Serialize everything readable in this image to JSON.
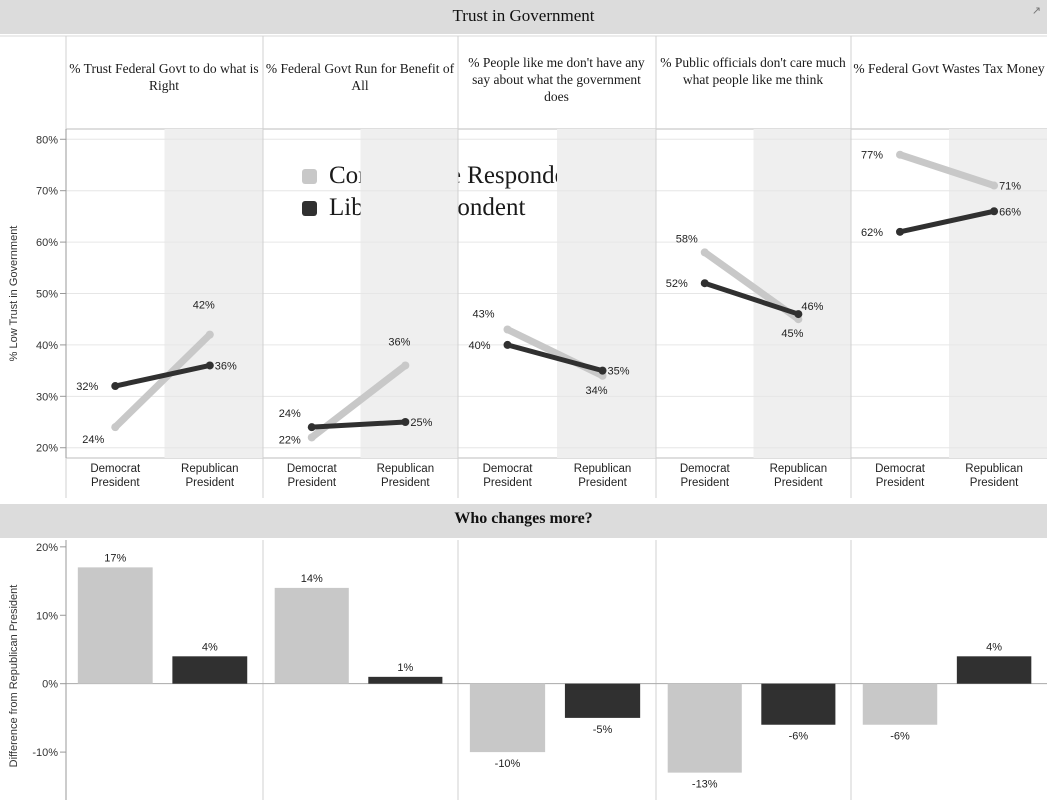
{
  "header": {
    "title": "Trust in Government",
    "popout_icon": "popout-icon"
  },
  "lower_title": "Who changes more?",
  "colors": {
    "conservative": "#c8c8c8",
    "liberal": "#303030",
    "band": "#dcdcdc",
    "shade": "#efefef",
    "grid": "#cfcfcf"
  },
  "legend": {
    "conservative": "Conservative Respondent",
    "liberal": "Liberal Respondent"
  },
  "chart_data": [
    {
      "type": "line",
      "title": "Trust in Government",
      "ylabel": "% Low Trust in Government",
      "ylim": [
        18,
        82
      ],
      "yticks": [
        "20%",
        "30%",
        "40%",
        "50%",
        "60%",
        "70%",
        "80%"
      ],
      "ytick_values": [
        20,
        30,
        40,
        50,
        60,
        70,
        80
      ],
      "categories": [
        "Democrat President",
        "Republican President"
      ],
      "panels": [
        {
          "title": "% Trust Federal Govt to do what is Right",
          "series": [
            {
              "name": "Conservative Respondent",
              "values": [
                24,
                42
              ],
              "labels": [
                "24%",
                "42%"
              ]
            },
            {
              "name": "Liberal Respondent",
              "values": [
                32,
                36
              ],
              "labels": [
                "32%",
                "36%"
              ]
            }
          ]
        },
        {
          "title": "% Federal Govt Run for Benefit of All",
          "series": [
            {
              "name": "Conservative Respondent",
              "values": [
                22,
                36
              ],
              "labels": [
                "22%",
                "36%"
              ]
            },
            {
              "name": "Liberal Respondent",
              "values": [
                24,
                25
              ],
              "labels": [
                "24%",
                "25%"
              ]
            }
          ]
        },
        {
          "title": "% People like me don't have any say about what the government does",
          "series": [
            {
              "name": "Conservative Respondent",
              "values": [
                43,
                34
              ],
              "labels": [
                "43%",
                "34%"
              ]
            },
            {
              "name": "Liberal Respondent",
              "values": [
                40,
                35
              ],
              "labels": [
                "40%",
                "35%"
              ]
            }
          ]
        },
        {
          "title": "% Public officials don't care much what people like me think",
          "series": [
            {
              "name": "Conservative Respondent",
              "values": [
                58,
                45
              ],
              "labels": [
                "58%",
                "45%"
              ]
            },
            {
              "name": "Liberal Respondent",
              "values": [
                52,
                46
              ],
              "labels": [
                "52%",
                "46%"
              ]
            }
          ]
        },
        {
          "title": "% Federal Govt Wastes Tax Money",
          "series": [
            {
              "name": "Conservative Respondent",
              "values": [
                77,
                71
              ],
              "labels": [
                "77%",
                "71%"
              ]
            },
            {
              "name": "Liberal Respondent",
              "values": [
                62,
                66
              ],
              "labels": [
                "62%",
                "66%"
              ]
            }
          ]
        }
      ]
    },
    {
      "type": "bar",
      "title": "Who changes more?",
      "ylabel": "Difference from Republican President",
      "ylim": [
        -17,
        21
      ],
      "yticks": [
        "20%",
        "10%",
        "0%",
        "-10%"
      ],
      "ytick_values": [
        20,
        10,
        0,
        -10
      ],
      "panels": [
        {
          "conservative": 17,
          "liberal": 4,
          "labels": [
            "17%",
            "4%"
          ]
        },
        {
          "conservative": 14,
          "liberal": 1,
          "labels": [
            "14%",
            "1%"
          ]
        },
        {
          "conservative": -10,
          "liberal": -5,
          "labels": [
            "-10%",
            "-5%"
          ]
        },
        {
          "conservative": -13,
          "liberal": -6,
          "labels": [
            "-13%",
            "-6%"
          ]
        },
        {
          "conservative": -6,
          "liberal": 4,
          "labels": [
            "-6%",
            "4%"
          ]
        }
      ]
    }
  ]
}
